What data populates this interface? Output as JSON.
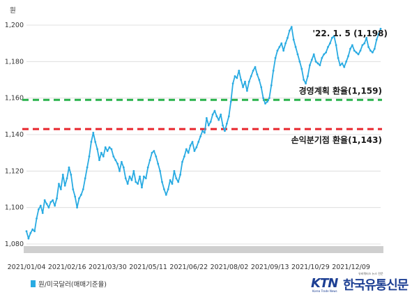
{
  "chart_data": {
    "type": "line",
    "ylabel": "원",
    "ylim": [
      1080,
      1200
    ],
    "yticks": [
      "1,200",
      "1,180",
      "1,160",
      "1,140",
      "1,120",
      "1,100",
      "1,080"
    ],
    "ytick_values": [
      1200,
      1180,
      1160,
      1140,
      1120,
      1100,
      1080
    ],
    "xticks": [
      "2021/01/04",
      "2021/02/16",
      "2021/03/30",
      "2021/05/11",
      "2021/06/22",
      "2021/08/02",
      "2021/09/13",
      "2021/10/29",
      "2021/12/09"
    ],
    "grid": true,
    "legend_position": "bottom-left",
    "series": [
      {
        "name": "원/미국달러(매매기준율)",
        "color": "#29abe2",
        "values": [
          1087,
          1083,
          1086,
          1088,
          1087,
          1094,
          1099,
          1101,
          1097,
          1104,
          1102,
          1100,
          1103,
          1104,
          1101,
          1105,
          1113,
          1110,
          1118,
          1112,
          1116,
          1122,
          1118,
          1110,
          1106,
          1100,
          1105,
          1107,
          1110,
          1116,
          1122,
          1128,
          1136,
          1141,
          1136,
          1132,
          1126,
          1130,
          1128,
          1133,
          1131,
          1133,
          1132,
          1128,
          1126,
          1124,
          1120,
          1125,
          1122,
          1116,
          1113,
          1117,
          1115,
          1120,
          1114,
          1113,
          1117,
          1111,
          1117,
          1116,
          1122,
          1126,
          1130,
          1131,
          1128,
          1124,
          1120,
          1114,
          1110,
          1107,
          1110,
          1115,
          1113,
          1120,
          1116,
          1114,
          1118,
          1125,
          1128,
          1132,
          1130,
          1134,
          1136,
          1131,
          1133,
          1136,
          1139,
          1142,
          1141,
          1149,
          1145,
          1147,
          1151,
          1153,
          1150,
          1148,
          1151,
          1145,
          1142,
          1146,
          1150,
          1158,
          1168,
          1172,
          1171,
          1175,
          1170,
          1166,
          1169,
          1164,
          1169,
          1172,
          1175,
          1177,
          1173,
          1170,
          1166,
          1160,
          1157,
          1158,
          1160,
          1167,
          1175,
          1182,
          1186,
          1188,
          1190,
          1186,
          1190,
          1193,
          1197,
          1199,
          1192,
          1188,
          1184,
          1180,
          1176,
          1170,
          1168,
          1172,
          1178,
          1181,
          1184,
          1180,
          1179,
          1178,
          1182,
          1184,
          1185,
          1188,
          1190,
          1193,
          1194,
          1189,
          1182,
          1178,
          1179,
          1177,
          1180,
          1183,
          1187,
          1189,
          1186,
          1185,
          1184,
          1186,
          1189,
          1190,
          1193,
          1188,
          1186,
          1185,
          1187,
          1192,
          1195,
          1198
        ]
      }
    ],
    "reference_lines": [
      {
        "value": 1159,
        "label": "경영계획 환율(1,159)",
        "color": "#27b24a"
      },
      {
        "value": 1143,
        "label": "손익분기점 환율(1,143)",
        "color": "#e8262d"
      }
    ],
    "annotations": [
      {
        "label": "'22. 1. 5 (1,198)"
      }
    ]
  },
  "legend": {
    "label": "원/미국달러(매매기준율)"
  },
  "logo": {
    "mark": "KTN",
    "subtitle": "Korea Trade News",
    "name": "한국유통신문",
    "tagline": "유비쿼터스 뉴스 전문"
  }
}
